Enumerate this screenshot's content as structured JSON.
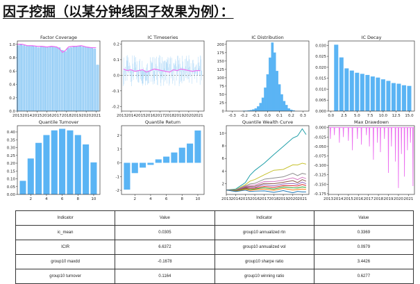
{
  "page": {
    "title": "因子挖掘（以某分钟线因子效果为例）："
  },
  "colors": {
    "bar": "#5ab4f4",
    "bar_light": "#a9d6f7",
    "overlay": "#ec6ff0",
    "axis": "#333333"
  },
  "chart_data": [
    {
      "id": "factor-coverage",
      "type": "bar",
      "title": "Factor Coverage",
      "xlim": [
        2013,
        2021.4
      ],
      "ylim": [
        0,
        1.05
      ],
      "xticks": [
        2013,
        2014,
        2015,
        2016,
        2017,
        2018,
        2019,
        2020,
        2021
      ],
      "yticks": [
        0,
        0.2,
        0.4,
        0.6,
        0.8,
        1.0
      ],
      "ytick_labels": [
        "0.0",
        "0.2",
        "0.4",
        "0.6",
        "0.8",
        "1.0"
      ],
      "bars_x": [
        2013.1,
        2013.4,
        2013.7,
        2014.0,
        2014.3,
        2014.6,
        2014.9,
        2015.2,
        2015.5,
        2015.8,
        2016.1,
        2016.4,
        2016.7,
        2017.0,
        2017.3,
        2017.6,
        2017.9,
        2018.2,
        2018.5,
        2018.8,
        2019.1,
        2019.4,
        2019.7,
        2020.0,
        2020.3,
        2020.6,
        2020.9,
        2021.2
      ],
      "bars_y": [
        0.98,
        0.99,
        0.98,
        0.97,
        0.98,
        0.97,
        0.96,
        0.95,
        0.97,
        0.96,
        0.95,
        0.96,
        0.97,
        0.96,
        0.95,
        0.91,
        0.89,
        0.94,
        0.95,
        0.96,
        0.96,
        0.97,
        0.96,
        0.96,
        0.95,
        0.94,
        0.93,
        0.69
      ],
      "overlay_line": {
        "x": [
          2013.0,
          2013.5,
          2014.0,
          2014.5,
          2015.0,
          2015.5,
          2016.0,
          2016.5,
          2017.0,
          2017.3,
          2017.6,
          2017.9,
          2018.2,
          2018.6,
          2019.0,
          2019.5,
          2020.0,
          2020.5,
          2021.0
        ],
        "y": [
          1.0,
          1.0,
          0.98,
          0.98,
          0.97,
          0.97,
          0.96,
          0.97,
          0.96,
          0.93,
          0.88,
          0.91,
          0.96,
          0.97,
          0.97,
          0.98,
          0.96,
          0.95,
          0.95
        ]
      }
    },
    {
      "id": "ic-timeseries",
      "type": "line",
      "title": "IC Timeseries",
      "xlim": [
        2013,
        2021.6
      ],
      "ylim": [
        -0.23,
        0.22
      ],
      "xticks": [
        2013,
        2014,
        2015,
        2016,
        2017,
        2018,
        2019,
        2020,
        2021
      ],
      "yticks": [
        -0.2,
        -0.1,
        0.0,
        0.1,
        0.2
      ],
      "ytick_labels": [
        "-0.2",
        "-0.1",
        "0.0",
        "0.1",
        "0.2"
      ],
      "ma_series": {
        "x": [
          2013.2,
          2013.6,
          2014.0,
          2014.4,
          2014.8,
          2015.2,
          2015.6,
          2016.0,
          2016.4,
          2016.8,
          2017.2,
          2017.6,
          2018.0,
          2018.4,
          2018.8,
          2019.2,
          2019.6,
          2020.0,
          2020.4,
          2020.8,
          2021.2
        ],
        "y": [
          0.04,
          0.03,
          0.035,
          0.025,
          0.03,
          0.035,
          0.02,
          0.03,
          0.04,
          0.035,
          0.03,
          0.025,
          0.02,
          0.035,
          0.03,
          0.04,
          0.035,
          0.03,
          0.025,
          0.03,
          0.03
        ]
      }
    },
    {
      "id": "ic-distribution",
      "type": "bar",
      "title": "IC Distribution",
      "xlim": [
        -0.35,
        0.35
      ],
      "ylim": [
        0,
        210
      ],
      "xticks": [
        -0.3,
        -0.2,
        -0.1,
        0.0,
        0.1,
        0.2,
        0.3
      ],
      "xtick_labels": [
        "-0.3",
        "-0.2",
        "-0.1",
        "0.0",
        "0.1",
        "0.2",
        "0.3"
      ],
      "yticks": [
        0,
        25,
        50,
        75,
        100,
        125,
        150,
        175,
        200
      ],
      "bin_width": 0.02,
      "bins_x": [
        -0.2,
        -0.18,
        -0.16,
        -0.14,
        -0.12,
        -0.1,
        -0.08,
        -0.06,
        -0.04,
        -0.02,
        0.0,
        0.02,
        0.04,
        0.06,
        0.08,
        0.1,
        0.12,
        0.14,
        0.16,
        0.18,
        0.2,
        0.22
      ],
      "bins_y": [
        1,
        1,
        2,
        3,
        5,
        8,
        14,
        24,
        40,
        70,
        110,
        160,
        205,
        175,
        120,
        80,
        50,
        30,
        18,
        8,
        4,
        2
      ]
    },
    {
      "id": "ic-decay",
      "type": "bar",
      "title": "IC Decay",
      "xlim": [
        -0.5,
        16
      ],
      "ylim": [
        0,
        0.032
      ],
      "xticks": [
        0,
        2.5,
        5,
        7.5,
        10,
        12.5,
        15
      ],
      "xtick_labels": [
        "0.0",
        "2.5",
        "5.0",
        "7.5",
        "10.0",
        "12.5",
        "15.0"
      ],
      "yticks": [
        0,
        0.005,
        0.01,
        0.015,
        0.02,
        0.025,
        0.03
      ],
      "ytick_labels": [
        "0.000",
        "0.005",
        "0.010",
        "0.015",
        "0.020",
        "0.025",
        "0.030"
      ],
      "categories": [
        1,
        2,
        3,
        4,
        5,
        6,
        7,
        8,
        9,
        10,
        11,
        12,
        13,
        14,
        15
      ],
      "values": [
        0.0303,
        0.0245,
        0.0195,
        0.0185,
        0.0175,
        0.017,
        0.0165,
        0.0158,
        0.0153,
        0.0145,
        0.0138,
        0.0128,
        0.0125,
        0.0118,
        0.0115
      ]
    },
    {
      "id": "quantile-turnover",
      "type": "bar",
      "title": "Quantile Turnover",
      "xlim": [
        0.3,
        10.8
      ],
      "ylim": [
        0,
        0.44
      ],
      "xticks": [
        2,
        4,
        6,
        8,
        10
      ],
      "yticks": [
        0,
        0.05,
        0.1,
        0.15,
        0.2,
        0.25,
        0.3,
        0.35,
        0.4
      ],
      "ytick_labels": [
        "0.00",
        "0.05",
        "0.10",
        "0.15",
        "0.20",
        "0.25",
        "0.30",
        "0.35",
        "0.40"
      ],
      "categories": [
        1,
        2,
        3,
        4,
        5,
        6,
        7,
        8,
        9,
        10
      ],
      "values": [
        0.087,
        0.23,
        0.33,
        0.38,
        0.41,
        0.42,
        0.41,
        0.38,
        0.32,
        0.205
      ]
    },
    {
      "id": "quantile-return",
      "type": "bar",
      "title": "Quantile Return",
      "xlim": [
        0.3,
        10.8
      ],
      "ylim": [
        -2.3,
        2.7
      ],
      "xticks": [
        2,
        4,
        6,
        8,
        10
      ],
      "yticks": [
        -2,
        -1,
        0,
        1,
        2
      ],
      "categories": [
        1,
        2,
        3,
        4,
        5,
        6,
        7,
        8,
        9,
        10
      ],
      "values": [
        -1.95,
        -0.75,
        -0.35,
        -0.15,
        0.25,
        0.45,
        0.75,
        1.1,
        1.4,
        2.35
      ]
    },
    {
      "id": "quantile-wealth",
      "type": "line",
      "title": "Quantile Wealth Curve",
      "xlim": [
        2013,
        2021.7
      ],
      "ylim": [
        0.3,
        11.2
      ],
      "xticks": [
        2013,
        2014,
        2015,
        2016,
        2017,
        2018,
        2019,
        2020,
        2021
      ],
      "yticks": [
        2,
        4,
        6,
        8,
        10
      ],
      "x": [
        2013.0,
        2014.0,
        2015.0,
        2015.5,
        2016.0,
        2017.0,
        2018.0,
        2019.0,
        2020.0,
        2020.5,
        2021.0,
        2021.4
      ],
      "series": [
        {
          "color": "#1f9fa8",
          "values": [
            1.0,
            1.3,
            2.2,
            3.2,
            4.1,
            5.4,
            6.7,
            7.8,
            9.1,
            9.7,
            10.8,
            9.8
          ]
        },
        {
          "color": "#c7c22f",
          "values": [
            1.0,
            1.2,
            1.8,
            2.3,
            2.8,
            3.4,
            4.0,
            4.4,
            5.0,
            4.9,
            5.4,
            5.1
          ]
        },
        {
          "color": "#8c8c8c",
          "values": [
            1.0,
            1.15,
            1.6,
            1.9,
            2.2,
            2.6,
            2.9,
            3.2,
            3.5,
            3.4,
            3.6,
            3.5
          ]
        },
        {
          "color": "#d67bc2",
          "values": [
            1.0,
            1.1,
            1.5,
            1.7,
            1.9,
            2.2,
            2.4,
            2.6,
            2.8,
            2.8,
            2.9,
            2.8
          ]
        },
        {
          "color": "#8c564b",
          "values": [
            1.0,
            1.1,
            1.4,
            1.55,
            1.7,
            1.9,
            2.1,
            2.2,
            2.4,
            2.3,
            2.5,
            2.4
          ]
        },
        {
          "color": "#9467bd",
          "values": [
            1.0,
            1.05,
            1.3,
            1.4,
            1.5,
            1.7,
            1.8,
            1.9,
            2.0,
            2.0,
            2.1,
            2.0
          ]
        },
        {
          "color": "#d62728",
          "values": [
            1.0,
            1.0,
            1.2,
            1.3,
            1.35,
            1.45,
            1.55,
            1.6,
            1.7,
            1.7,
            1.75,
            1.7
          ]
        },
        {
          "color": "#2ca02c",
          "values": [
            1.0,
            1.0,
            1.1,
            1.15,
            1.2,
            1.25,
            1.3,
            1.35,
            1.4,
            1.35,
            1.4,
            1.4
          ]
        },
        {
          "color": "#ff7f0e",
          "values": [
            1.0,
            0.95,
            1.0,
            1.0,
            1.05,
            1.05,
            1.1,
            1.1,
            1.1,
            1.05,
            1.1,
            1.1
          ]
        },
        {
          "color": "#1f77b4",
          "values": [
            1.0,
            0.9,
            0.85,
            0.85,
            0.8,
            0.8,
            0.75,
            0.75,
            0.7,
            0.7,
            0.7,
            0.7
          ]
        }
      ]
    },
    {
      "id": "max-drawdown",
      "type": "line",
      "title": "Max Drawdown",
      "xlim": [
        2013,
        2021.6
      ],
      "ylim": [
        -0.177,
        0.005
      ],
      "xticks": [
        2013,
        2014,
        2015,
        2016,
        2017,
        2018,
        2019,
        2020,
        2021
      ],
      "yticks": [
        0,
        -0.025,
        -0.05,
        -0.075,
        -0.1,
        -0.125,
        -0.15,
        -0.175
      ],
      "ytick_labels": [
        "0.000",
        "-0.025",
        "-0.050",
        "-0.075",
        "-0.100",
        "-0.125",
        "-0.150",
        "-0.175"
      ],
      "dips_x": [
        2013.2,
        2013.6,
        2014.1,
        2014.5,
        2015.0,
        2015.4,
        2015.9,
        2016.3,
        2016.8,
        2017.1,
        2017.5,
        2017.9,
        2018.2,
        2018.6,
        2019.0,
        2019.3,
        2019.7,
        2020.0,
        2020.3,
        2020.6,
        2020.9,
        2021.2,
        2021.45
      ],
      "dips_y": [
        -0.03,
        -0.02,
        -0.04,
        -0.025,
        -0.035,
        -0.06,
        -0.03,
        -0.045,
        -0.02,
        -0.05,
        -0.085,
        -0.04,
        -0.065,
        -0.03,
        -0.12,
        -0.05,
        -0.09,
        -0.16,
        -0.07,
        -0.13,
        -0.06,
        -0.04,
        -0.155
      ]
    }
  ],
  "table": {
    "headers": [
      "Indicator",
      "Value",
      "Indicator",
      "Value"
    ],
    "rows": [
      [
        "ic_mean",
        "0.0305",
        "group10 annualized rtn",
        "0.3369"
      ],
      [
        "ICIR",
        "6.6372",
        "group10 annualized vol",
        "0.0979"
      ],
      [
        "group10 maxdd",
        "-0.1678",
        "group10 sharpe ratio",
        "3.4426"
      ],
      [
        "group10 turnover",
        "0.1164",
        "group10 winning ratio",
        "0.6277"
      ]
    ]
  }
}
